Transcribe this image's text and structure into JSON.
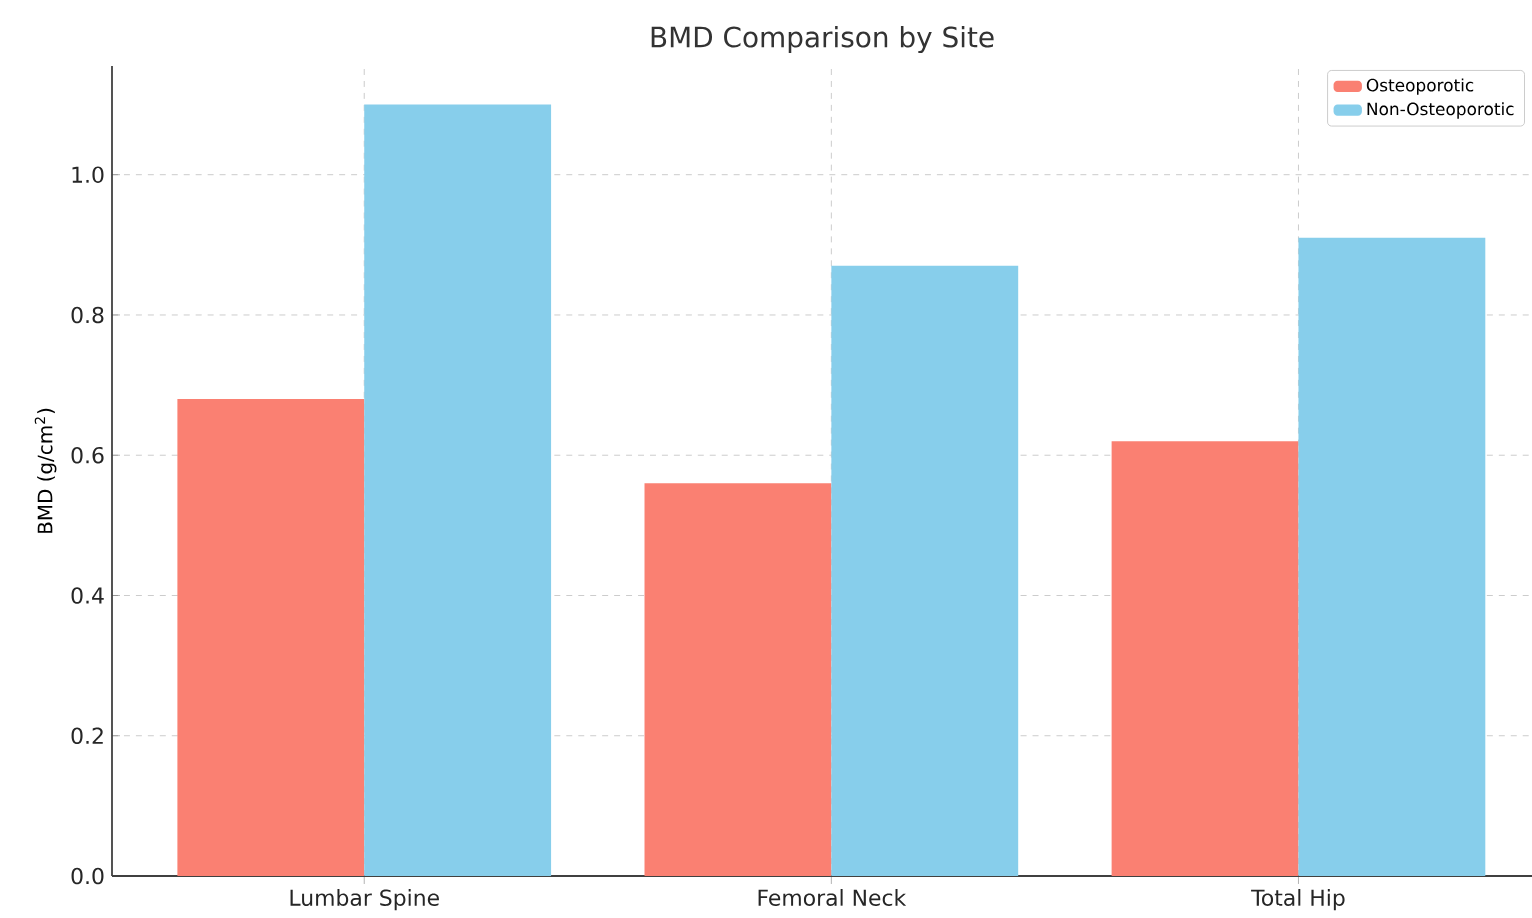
{
  "chart_data": {
    "type": "bar",
    "title": "BMD Comparison by Site",
    "ylabel": "BMD (g/cm$^{2}$)",
    "categories": [
      "Lumbar Spine",
      "Femoral Neck",
      "Total Hip"
    ],
    "series": [
      {
        "name": "Osteoporotic",
        "color": "#fa8072",
        "values": [
          0.68,
          0.56,
          0.62
        ]
      },
      {
        "name": "Non-Osteoporotic",
        "color": "#87ceeb",
        "values": [
          1.1,
          0.87,
          0.91
        ]
      }
    ],
    "ylim": [
      0,
      1.155
    ],
    "yticks": [
      {
        "value": 0,
        "label": "0.0"
      },
      0.2,
      0.4,
      0.6,
      0.8,
      {
        "value": 1.0,
        "label": "1.0"
      }
    ],
    "grid": true,
    "legend": "top right"
  }
}
